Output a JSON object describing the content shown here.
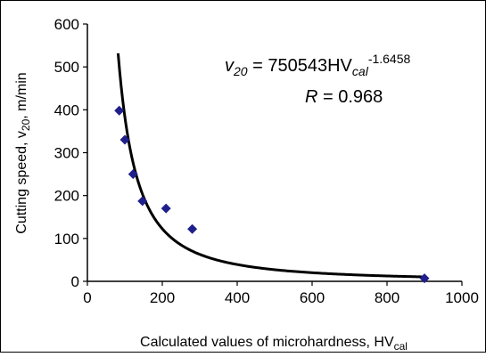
{
  "chart_data": {
    "type": "scatter",
    "xlabel": {
      "text": "Calculated values of microhardness, HV",
      "sub": "cal"
    },
    "ylabel": {
      "pre": "Cutting speed, v",
      "sub": "20",
      "post": ", m/min"
    },
    "xlim": [
      0,
      1000
    ],
    "ylim": [
      0,
      600
    ],
    "x_ticks": [
      0,
      200,
      400,
      600,
      800,
      1000
    ],
    "y_ticks": [
      0,
      100,
      200,
      300,
      400,
      500,
      600
    ],
    "grid": false,
    "points": [
      {
        "x": 85,
        "y": 398
      },
      {
        "x": 100,
        "y": 330
      },
      {
        "x": 122,
        "y": 250
      },
      {
        "x": 147,
        "y": 187
      },
      {
        "x": 210,
        "y": 170
      },
      {
        "x": 280,
        "y": 122
      },
      {
        "x": 900,
        "y": 7
      }
    ],
    "fit": {
      "type": "power",
      "a": 750543,
      "b": -1.6458,
      "x_range": [
        82,
        900
      ]
    },
    "annotations": {
      "eq_lhs_var": "v",
      "eq_lhs_sub": "20",
      "eq_middle": " = 750543HV",
      "eq_sub": "cal",
      "eq_sup": "-1.6458",
      "r_var": "R",
      "r_value": " = 0.968"
    },
    "colors": {
      "marker": "#1f1f8c",
      "line": "#000000"
    }
  }
}
